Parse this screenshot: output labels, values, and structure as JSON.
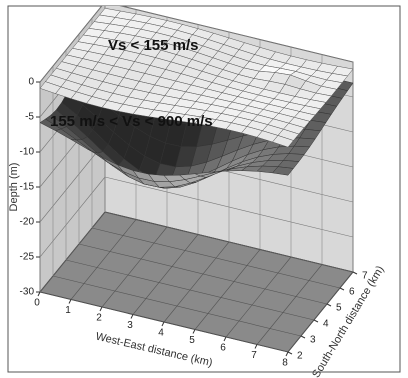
{
  "chart_data": {
    "type": "surface",
    "annotations": [
      "Vs < 155 m/s",
      "155 m/s < Vs < 900 m/s"
    ],
    "zlabel": "Depth (m)",
    "xlabel": "West-East distance (km)",
    "ylabel": "South-North distance (km)",
    "xlim": [
      0,
      8
    ],
    "xticks": [
      0,
      1,
      2,
      3,
      4,
      5,
      6,
      7,
      8
    ],
    "ylim": [
      2,
      7
    ],
    "yticks": [
      2,
      3,
      4,
      5,
      6,
      7
    ],
    "zlim": [
      -30,
      0
    ],
    "zticks": [
      0,
      -5,
      -10,
      -15,
      -20,
      -25,
      -30
    ],
    "grid": true
  }
}
